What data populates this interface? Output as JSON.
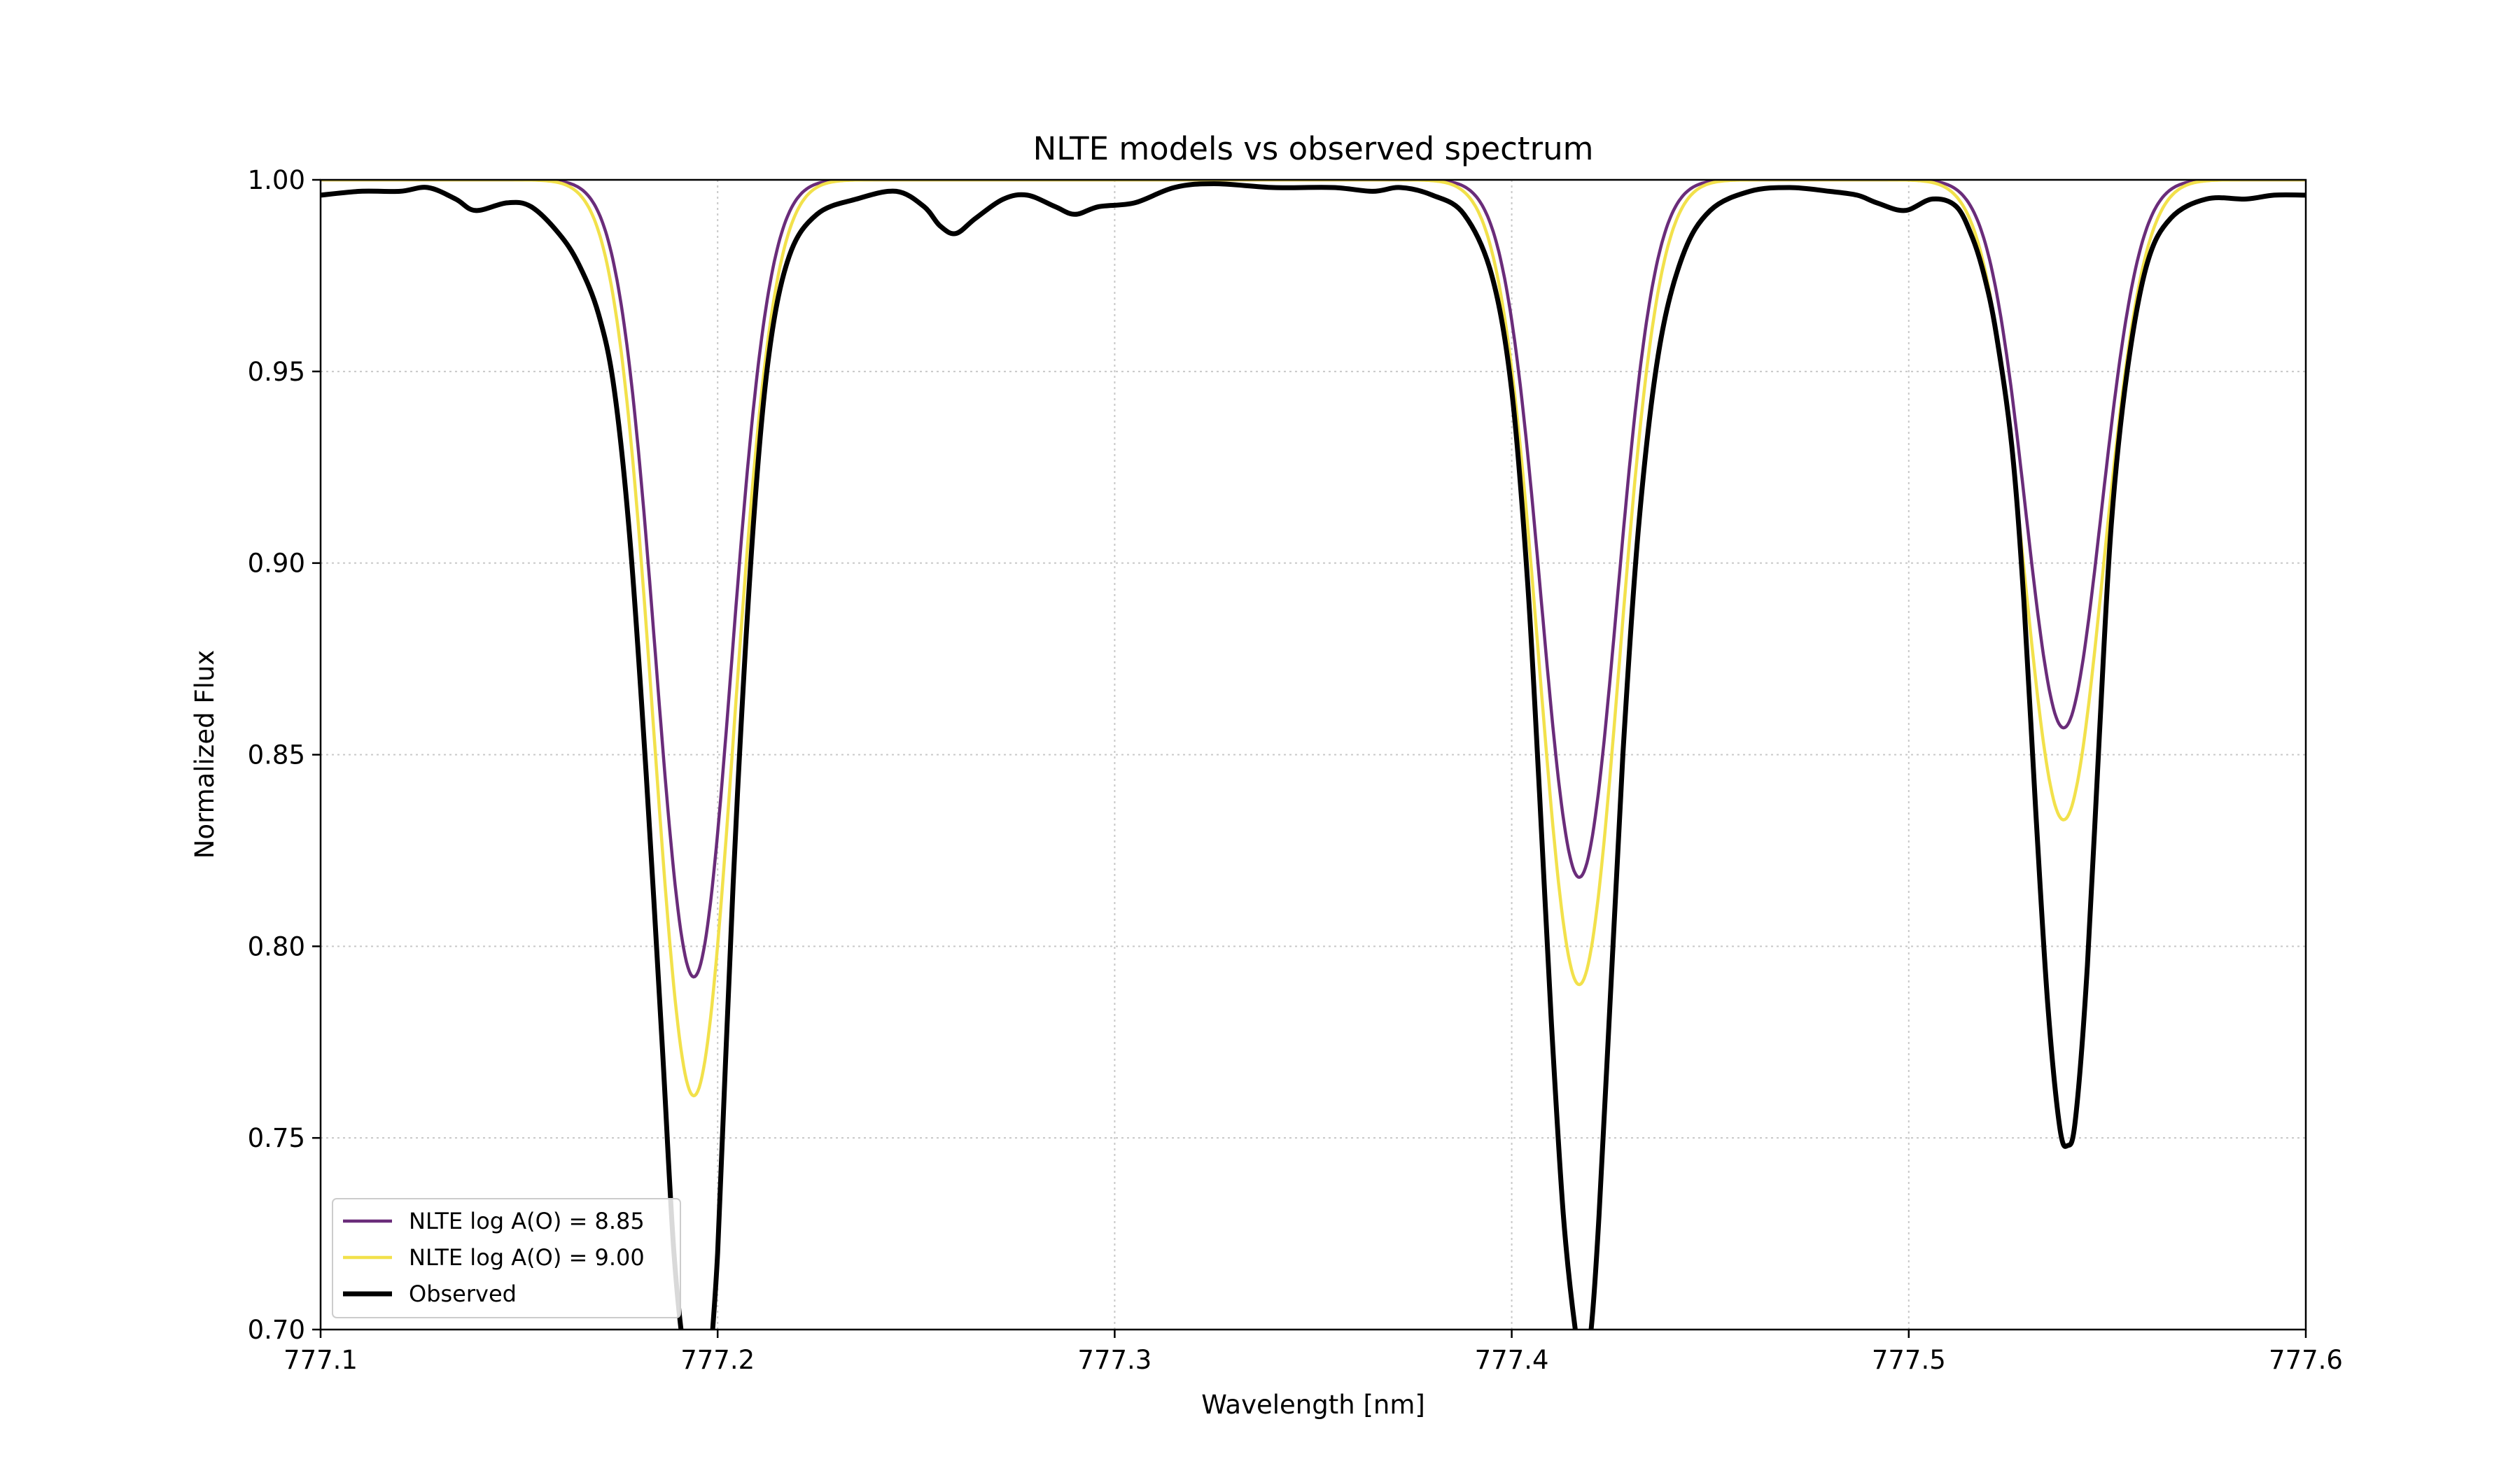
{
  "chart_data": {
    "type": "line",
    "title": "NLTE models vs observed spectrum",
    "xlabel": "Wavelength [nm]",
    "ylabel": "Normalized Flux",
    "xlim": [
      777.1,
      777.6
    ],
    "ylim": [
      0.7,
      1.0
    ],
    "xticks": [
      777.1,
      777.2,
      777.3,
      777.4,
      777.5,
      777.6
    ],
    "xtick_labels": [
      "777.1",
      "777.2",
      "777.3",
      "777.4",
      "777.5",
      "777.6"
    ],
    "yticks": [
      0.7,
      0.75,
      0.8,
      0.85,
      0.9,
      0.95,
      1.0
    ],
    "ytick_labels": [
      "0.70",
      "0.75",
      "0.80",
      "0.85",
      "0.90",
      "0.95",
      "1.00"
    ],
    "grid": true,
    "legend_position": "lower-left",
    "series": [
      {
        "name": "NLTE log A(O) = 8.85",
        "color": "#6a2c7a",
        "line_width": "thin",
        "lines": [
          {
            "center": 777.194,
            "depth": 0.208,
            "sigma": 0.0095
          },
          {
            "center": 777.417,
            "depth": 0.182,
            "sigma": 0.0095
          },
          {
            "center": 777.539,
            "depth": 0.143,
            "sigma": 0.0095
          }
        ]
      },
      {
        "name": "NLTE log A(O) = 9.00",
        "color": "#f2e14b",
        "line_width": "thin",
        "lines": [
          {
            "center": 777.194,
            "depth": 0.239,
            "sigma": 0.01
          },
          {
            "center": 777.417,
            "depth": 0.21,
            "sigma": 0.01
          },
          {
            "center": 777.539,
            "depth": 0.167,
            "sigma": 0.01
          }
        ]
      },
      {
        "name": "Observed",
        "color": "#000000",
        "line_width": "thick",
        "points": [
          [
            777.1,
            0.996
          ],
          [
            777.11,
            0.997
          ],
          [
            777.12,
            0.997
          ],
          [
            777.127,
            0.998
          ],
          [
            777.134,
            0.995
          ],
          [
            777.139,
            0.992
          ],
          [
            777.147,
            0.994
          ],
          [
            777.153,
            0.993
          ],
          [
            777.16,
            0.986
          ],
          [
            777.165,
            0.978
          ],
          [
            777.17,
            0.965
          ],
          [
            777.174,
            0.945
          ],
          [
            777.178,
            0.905
          ],
          [
            777.182,
            0.845
          ],
          [
            777.186,
            0.775
          ],
          [
            777.189,
            0.72
          ],
          [
            777.192,
            0.69
          ],
          [
            777.196,
            0.665
          ],
          [
            777.198,
            0.69
          ],
          [
            777.2,
            0.72
          ],
          [
            777.202,
            0.77
          ],
          [
            777.205,
            0.84
          ],
          [
            777.209,
            0.91
          ],
          [
            777.213,
            0.955
          ],
          [
            777.218,
            0.98
          ],
          [
            777.225,
            0.991
          ],
          [
            777.235,
            0.995
          ],
          [
            777.245,
            0.997
          ],
          [
            777.252,
            0.993
          ],
          [
            777.256,
            0.988
          ],
          [
            777.26,
            0.986
          ],
          [
            777.265,
            0.99
          ],
          [
            777.272,
            0.995
          ],
          [
            777.278,
            0.996
          ],
          [
            777.285,
            0.993
          ],
          [
            777.29,
            0.991
          ],
          [
            777.296,
            0.993
          ],
          [
            777.305,
            0.994
          ],
          [
            777.315,
            0.998
          ],
          [
            777.325,
            0.999
          ],
          [
            777.34,
            0.998
          ],
          [
            777.355,
            0.998
          ],
          [
            777.365,
            0.997
          ],
          [
            777.372,
            0.998
          ],
          [
            777.38,
            0.996
          ],
          [
            777.388,
            0.991
          ],
          [
            777.395,
            0.975
          ],
          [
            777.4,
            0.945
          ],
          [
            777.404,
            0.895
          ],
          [
            777.407,
            0.84
          ],
          [
            777.41,
            0.78
          ],
          [
            777.413,
            0.73
          ],
          [
            777.416,
            0.7
          ],
          [
            777.418,
            0.69
          ],
          [
            777.42,
            0.7
          ],
          [
            777.422,
            0.73
          ],
          [
            777.425,
            0.79
          ],
          [
            777.428,
            0.85
          ],
          [
            777.432,
            0.91
          ],
          [
            777.437,
            0.955
          ],
          [
            777.443,
            0.98
          ],
          [
            777.45,
            0.992
          ],
          [
            777.46,
            0.997
          ],
          [
            777.47,
            0.998
          ],
          [
            777.48,
            0.997
          ],
          [
            777.487,
            0.996
          ],
          [
            777.492,
            0.994
          ],
          [
            777.499,
            0.992
          ],
          [
            777.506,
            0.995
          ],
          [
            777.512,
            0.993
          ],
          [
            777.516,
            0.985
          ],
          [
            777.519,
            0.975
          ],
          [
            777.522,
            0.96
          ],
          [
            777.526,
            0.93
          ],
          [
            777.529,
            0.89
          ],
          [
            777.532,
            0.835
          ],
          [
            777.535,
            0.785
          ],
          [
            777.538,
            0.753
          ],
          [
            777.54,
            0.748
          ],
          [
            777.542,
            0.755
          ],
          [
            777.545,
            0.795
          ],
          [
            777.548,
            0.855
          ],
          [
            777.551,
            0.91
          ],
          [
            777.555,
            0.95
          ],
          [
            777.56,
            0.978
          ],
          [
            777.566,
            0.99
          ],
          [
            777.575,
            0.995
          ],
          [
            777.585,
            0.995
          ],
          [
            777.592,
            0.996
          ],
          [
            777.6,
            0.996
          ]
        ]
      }
    ]
  }
}
